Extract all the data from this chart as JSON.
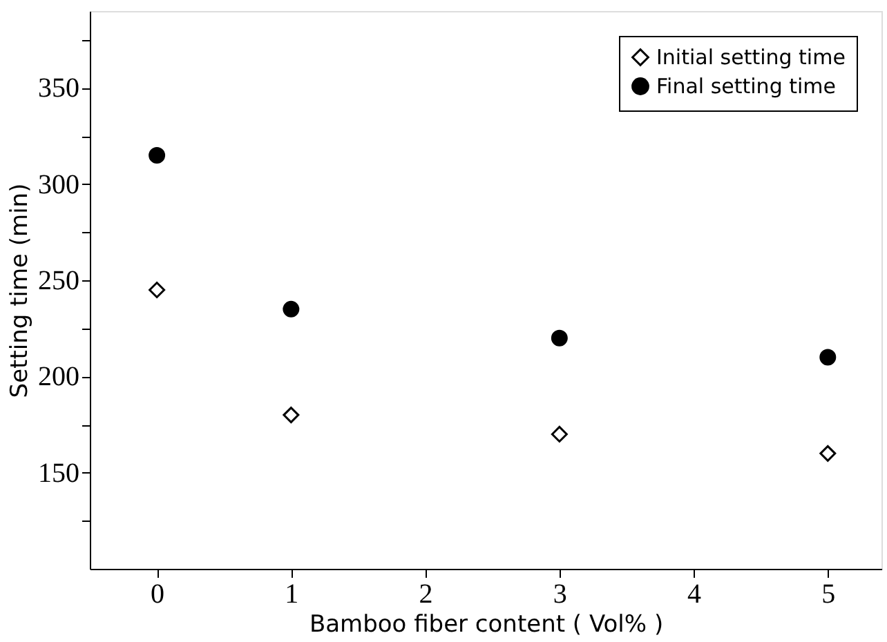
{
  "chart_data": {
    "type": "scatter",
    "xlabel": "Bamboo fiber content ( Vol% )",
    "ylabel": "Setting time (min)",
    "x": [
      0,
      1,
      3,
      5
    ],
    "series": [
      {
        "name": "Initial setting time",
        "color": "#000000",
        "marker": "diamond",
        "values": [
          245,
          180,
          170,
          160
        ]
      },
      {
        "name": "Final setting time",
        "color": "#000000",
        "marker": "circle",
        "values": [
          315,
          235,
          220,
          210
        ]
      }
    ],
    "xlim": [
      -0.5,
      5.4
    ],
    "xticks": [
      0,
      1,
      2,
      3,
      4,
      5
    ],
    "ylim": [
      100,
      390
    ],
    "yticks": [
      {
        "value": 125,
        "label": null
      },
      150,
      {
        "value": 175,
        "label": null
      },
      200,
      {
        "value": 225,
        "label": null
      },
      250,
      {
        "value": 275,
        "label": null
      },
      300,
      {
        "value": 325,
        "label": null
      },
      350,
      {
        "value": 375,
        "label": null
      }
    ],
    "grid": false,
    "legend": "top right"
  }
}
